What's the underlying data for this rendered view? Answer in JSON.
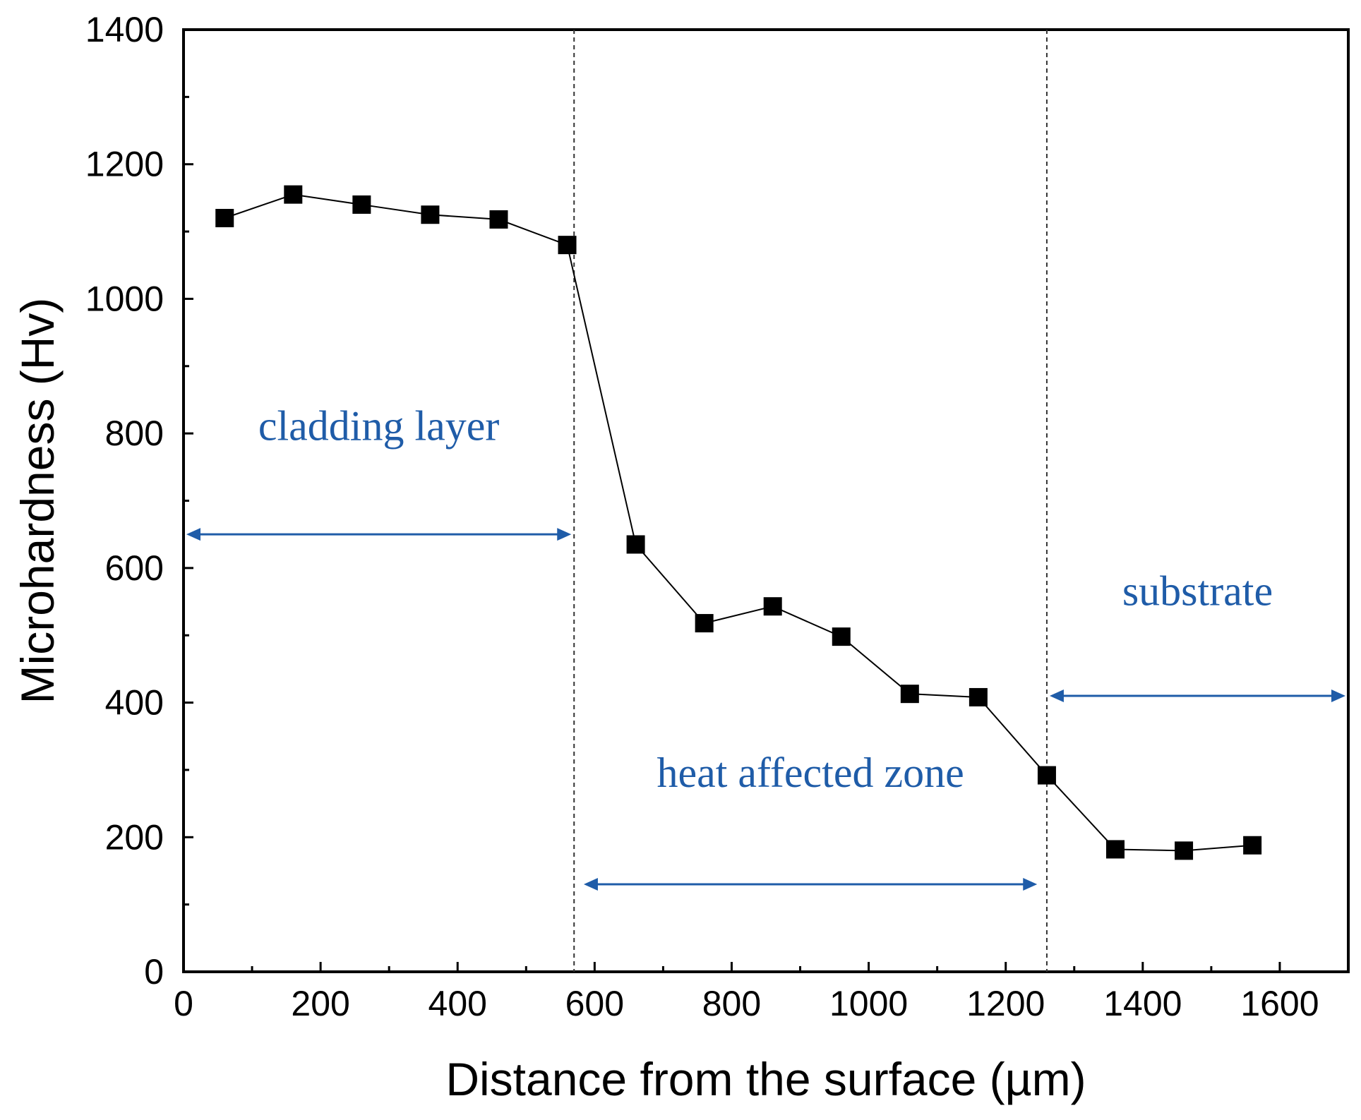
{
  "chart_data": {
    "type": "line",
    "title": "",
    "xlabel": "Distance from the surface (µm)",
    "ylabel": "Microhardness (Hv)",
    "xlim": [
      0,
      1700
    ],
    "ylim": [
      0,
      1400
    ],
    "x_ticks": [
      0,
      200,
      400,
      600,
      800,
      1000,
      1200,
      1400,
      1600
    ],
    "y_ticks": [
      0,
      200,
      400,
      600,
      800,
      1000,
      1200,
      1400
    ],
    "x_tick_labels": [
      "0",
      "200",
      "400",
      "600",
      "800",
      "1000",
      "1200",
      "1400",
      "1600"
    ],
    "y_tick_labels": [
      "0",
      "200",
      "400",
      "600",
      "800",
      "1000",
      "1200",
      "1400"
    ],
    "grid": false,
    "marker": "square",
    "series": [
      {
        "name": "Microhardness",
        "x": [
          60,
          160,
          260,
          360,
          460,
          560,
          660,
          760,
          860,
          960,
          1060,
          1160,
          1260,
          1360,
          1460,
          1560
        ],
        "values": [
          1120,
          1155,
          1140,
          1125,
          1118,
          1080,
          635,
          518,
          543,
          498,
          413,
          408,
          292,
          182,
          180,
          188
        ]
      }
    ],
    "boundaries": [
      570,
      1260
    ],
    "regions": [
      {
        "label": "cladding layer",
        "x_range": [
          0,
          570
        ],
        "arrow_y": 650,
        "label_y": 790
      },
      {
        "label": "heat affected zone",
        "x_range": [
          580,
          1250
        ],
        "arrow_y": 130,
        "label_y": 275
      },
      {
        "label": "substrate",
        "x_range": [
          1260,
          1700
        ],
        "arrow_y": 410,
        "label_y": 545
      }
    ],
    "colors": {
      "line": "#000000",
      "marker": "#000000",
      "annotation": "#1f5ca8",
      "boundary": "#333333"
    }
  }
}
